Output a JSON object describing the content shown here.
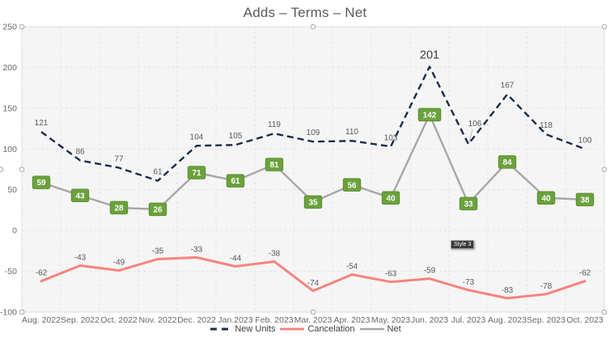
{
  "chart_data": {
    "type": "line",
    "title": "Adds – Terms – Net",
    "categories": [
      "Aug. 2022",
      "Sep. 2022",
      "Oct. 2022",
      "Nov. 2022",
      "Dec. 2022",
      "Jan.2023",
      "Feb. 2023",
      "Mar. 2023",
      "Apr. 2023",
      "May. 2023",
      "Jun. 2023",
      "Jul. 2023",
      "Aug. 2023",
      "Sep. 2023",
      "Oct. 2023"
    ],
    "series": [
      {
        "name": "New Units",
        "style": "dashed",
        "color": "#1c2b4a",
        "values": [
          121,
          86,
          77,
          61,
          104,
          105,
          119,
          109,
          110,
          103,
          201,
          106,
          167,
          118,
          100
        ],
        "label_color": "#595959",
        "emphasis_index": 10,
        "emphasis_color": "#3d3d3d",
        "label_offsets": {
          "11": {
            "dx": 8,
            "dy": -14,
            "leader": true
          }
        }
      },
      {
        "name": "Cancelation",
        "style": "solid",
        "color": "#f9827c",
        "values": [
          -62,
          -43,
          -49,
          -35,
          -33,
          -44,
          -38,
          -74,
          -54,
          -63,
          -59,
          -73,
          -83,
          -78,
          -62
        ],
        "label_color": "#595959"
      },
      {
        "name": "Net",
        "style": "solid",
        "color": "#a6a6a6",
        "values": [
          59,
          43,
          28,
          26,
          71,
          61,
          81,
          35,
          56,
          40,
          142,
          33,
          84,
          40,
          38
        ],
        "label_box": {
          "fill": "#6aa23c",
          "border": "#5b8d31",
          "text_color": "#ffffff"
        }
      }
    ],
    "ylim": [
      -100,
      250
    ],
    "ytick_step": 50,
    "grid": true,
    "legend_position": "bottom",
    "plot_bg": "#f5f5f5",
    "grid_color": "#e3e3e3",
    "border_color": "#d9d9d9",
    "tick_color": "#696969"
  },
  "ui": {
    "style_tooltip": "Style 3"
  }
}
